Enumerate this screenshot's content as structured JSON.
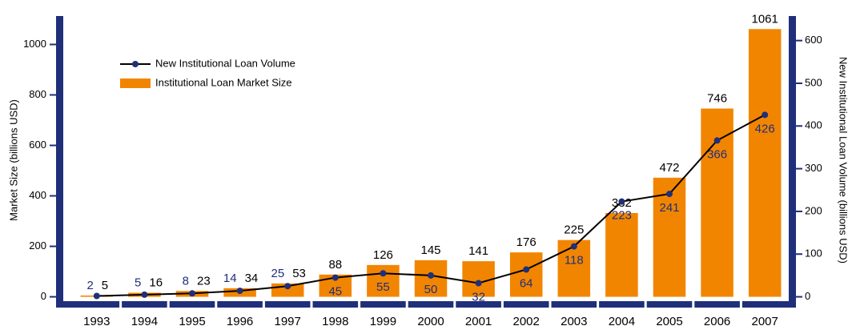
{
  "chart_data": {
    "type": "bar_line",
    "y_label": "Market Size (billions USD)",
    "y2_label": "New Institutional Loan Volume (billions USD)",
    "categories": [
      "1993",
      "1994",
      "1995",
      "1996",
      "1997",
      "1998",
      "1999",
      "2000",
      "2001",
      "2002",
      "2003",
      "2004",
      "2005",
      "2006",
      "2007"
    ],
    "series": [
      {
        "name": "New Institutional Loan Volume",
        "type": "line",
        "axis": "y2",
        "color": "#1f2f7a",
        "values": [
          2,
          5,
          8,
          14,
          25,
          45,
          55,
          50,
          32,
          64,
          118,
          223,
          241,
          366,
          426
        ]
      },
      {
        "name": "Institutional Loan Market Size",
        "type": "bar",
        "axis": "y",
        "color": "#f28500",
        "values": [
          5,
          16,
          23,
          34,
          53,
          88,
          126,
          145,
          141,
          176,
          225,
          332,
          472,
          746,
          1061
        ]
      }
    ],
    "ylim": [
      -30,
      1100
    ],
    "yticks": [
      0,
      200,
      400,
      600,
      800,
      1000
    ],
    "y2lim": [
      -17.7,
      650
    ],
    "y2ticks": [
      0,
      100,
      200,
      300,
      400,
      500,
      600
    ],
    "legend": "upper left"
  }
}
